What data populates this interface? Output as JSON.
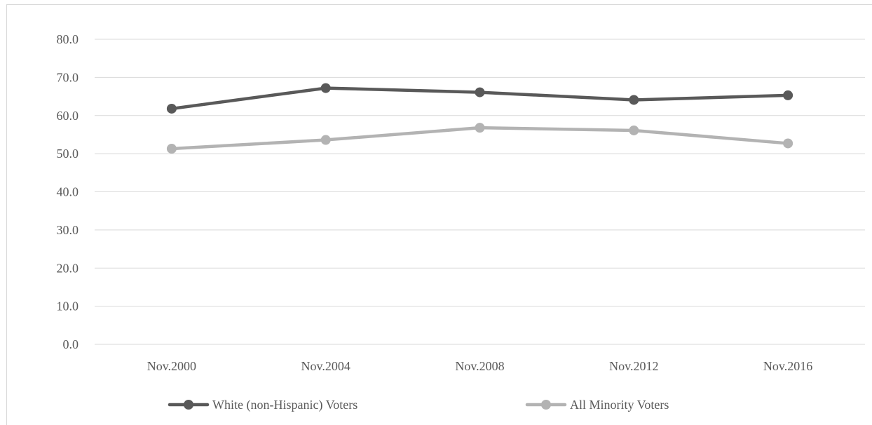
{
  "chart_data": {
    "type": "line",
    "title": "",
    "xlabel": "",
    "ylabel": "",
    "categories": [
      "Nov.2000",
      "Nov.2004",
      "Nov.2008",
      "Nov.2012",
      "Nov.2016"
    ],
    "ylim": [
      0,
      80
    ],
    "yticks": [
      "0.0",
      "10.0",
      "20.0",
      "30.0",
      "40.0",
      "50.0",
      "60.0",
      "70.0",
      "80.0"
    ],
    "grid": "horizontal",
    "legend_position": "bottom",
    "series": [
      {
        "name": "White (non-Hispanic) Voters",
        "color": "#595959",
        "values": [
          61.8,
          67.2,
          66.1,
          64.1,
          65.3
        ]
      },
      {
        "name": "All Minority Voters",
        "color": "#b3b3b3",
        "values": [
          51.3,
          53.6,
          56.8,
          56.1,
          52.7
        ]
      }
    ]
  }
}
